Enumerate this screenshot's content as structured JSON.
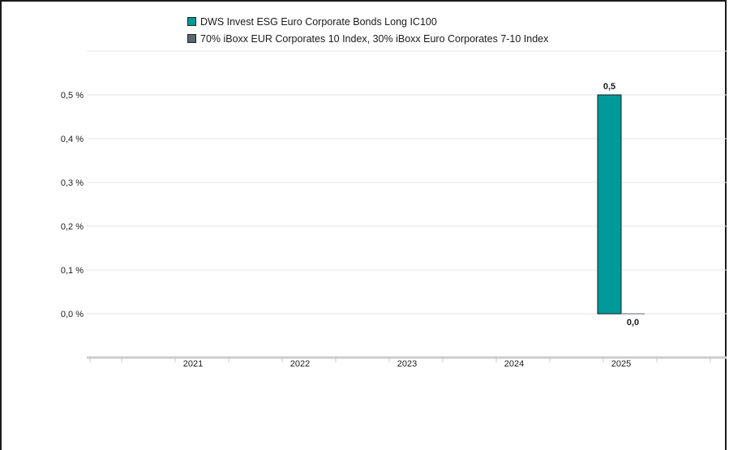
{
  "chart_data": {
    "type": "bar",
    "categories": [
      "2021",
      "2022",
      "2023",
      "2024",
      "2025"
    ],
    "series": [
      {
        "name": "DWS Invest ESG Euro Corporate Bonds Long IC100",
        "values": [
          null,
          null,
          null,
          null,
          0.5
        ],
        "labels": [
          "",
          "",
          "",
          "",
          "0,5"
        ],
        "color": "#009a9a"
      },
      {
        "name": "70% iBoxx EUR Corporates 10 Index, 30% iBoxx Euro Corporates 7-10 Index",
        "values": [
          null,
          null,
          null,
          null,
          0.0
        ],
        "labels": [
          "",
          "",
          "",
          "",
          "0,0"
        ],
        "color": "#5a6670"
      }
    ],
    "yticks": [
      0.0,
      0.1,
      0.2,
      0.3,
      0.4,
      0.5
    ],
    "ytick_labels": [
      "0,0 %",
      "0,1 %",
      "0,2 %",
      "0,3 %",
      "0,4 %",
      "0,5 %"
    ],
    "ylim": [
      -0.2,
      0.6
    ],
    "grid": true,
    "legend_position": "top",
    "title": "",
    "xlabel": "",
    "ylabel": ""
  }
}
